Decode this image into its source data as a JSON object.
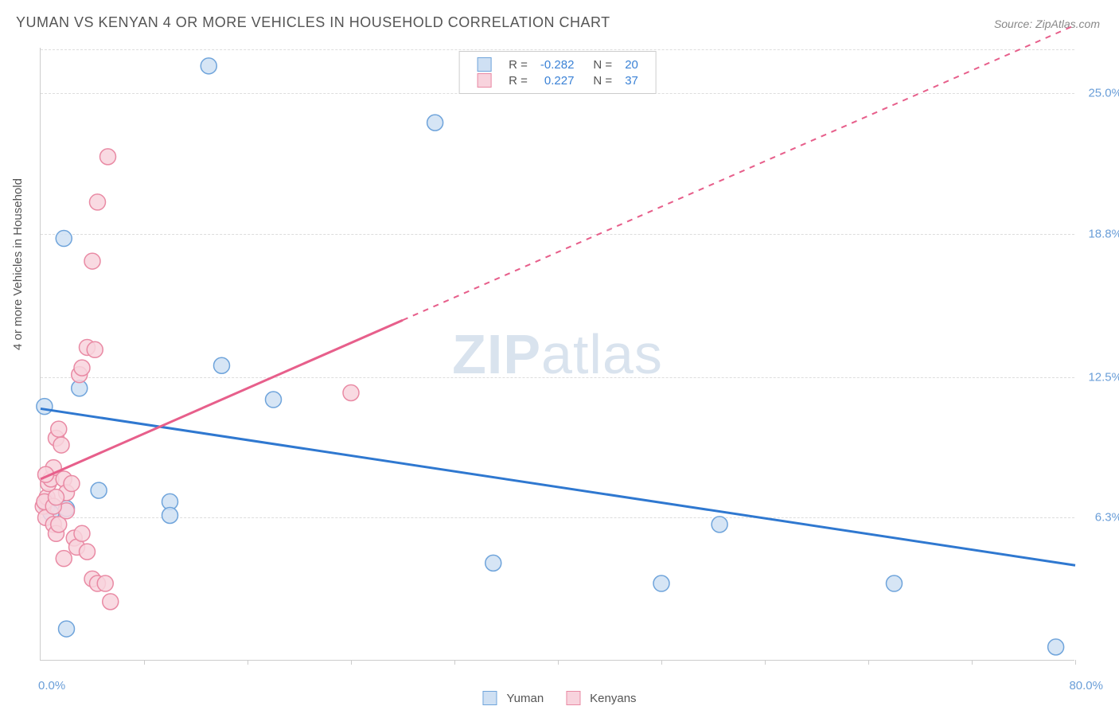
{
  "title": "YUMAN VS KENYAN 4 OR MORE VEHICLES IN HOUSEHOLD CORRELATION CHART",
  "source": "Source: ZipAtlas.com",
  "y_axis_label": "4 or more Vehicles in Household",
  "watermark_bold": "ZIP",
  "watermark_rest": "atlas",
  "chart": {
    "type": "scatter",
    "background_color": "#ffffff",
    "grid_color": "#dddddd",
    "axis_color": "#cccccc",
    "xlim": [
      0.0,
      80.0
    ],
    "ylim": [
      0.0,
      27.0
    ],
    "x_tick_positions": [
      8.0,
      16.0,
      24.0,
      32.0,
      40.0,
      48.0,
      56.0,
      64.0,
      72.0,
      80.0
    ],
    "x_min_label": "0.0%",
    "x_max_label": "80.0%",
    "y_grid": [
      {
        "v": 6.3,
        "label": "6.3%"
      },
      {
        "v": 12.5,
        "label": "12.5%"
      },
      {
        "v": 18.8,
        "label": "18.8%"
      },
      {
        "v": 25.0,
        "label": "25.0%"
      }
    ],
    "series": [
      {
        "name": "Yuman",
        "label": "Yuman",
        "fill_color": "#cfe0f3",
        "stroke_color": "#6fa4db",
        "line_color": "#2f78d0",
        "marker_radius": 10,
        "marker_opacity": 0.85,
        "R": "-0.282",
        "N": "20",
        "trend": {
          "x1": 0.0,
          "y1": 11.1,
          "x2": 80.0,
          "y2": 4.2,
          "dash_from_x": null
        },
        "points": [
          {
            "x": 0.5,
            "y": 7.0
          },
          {
            "x": 0.5,
            "y": 6.8
          },
          {
            "x": 2.0,
            "y": 6.7
          },
          {
            "x": 0.3,
            "y": 11.2
          },
          {
            "x": 1.8,
            "y": 18.6
          },
          {
            "x": 3.0,
            "y": 12.0
          },
          {
            "x": 4.5,
            "y": 7.5
          },
          {
            "x": 2.0,
            "y": 1.4
          },
          {
            "x": 10.0,
            "y": 7.0
          },
          {
            "x": 10.0,
            "y": 6.4
          },
          {
            "x": 13.0,
            "y": 26.2
          },
          {
            "x": 14.0,
            "y": 13.0
          },
          {
            "x": 18.0,
            "y": 11.5
          },
          {
            "x": 30.5,
            "y": 23.7
          },
          {
            "x": 35.0,
            "y": 4.3
          },
          {
            "x": 48.0,
            "y": 3.4
          },
          {
            "x": 52.5,
            "y": 6.0
          },
          {
            "x": 66.0,
            "y": 3.4
          },
          {
            "x": 78.5,
            "y": 0.6
          },
          {
            "x": 0.8,
            "y": 6.5
          }
        ]
      },
      {
        "name": "Kenyans",
        "label": "Kenyans",
        "fill_color": "#f8d3dd",
        "stroke_color": "#e98aa4",
        "line_color": "#e75f8b",
        "marker_radius": 10,
        "marker_opacity": 0.85,
        "R": "0.227",
        "N": "37",
        "trend": {
          "x1": 0.0,
          "y1": 8.0,
          "x2": 80.0,
          "y2": 28.0,
          "dash_from_x": 28.0
        },
        "points": [
          {
            "x": 0.2,
            "y": 6.8
          },
          {
            "x": 0.4,
            "y": 6.3
          },
          {
            "x": 0.5,
            "y": 7.2
          },
          {
            "x": 0.6,
            "y": 7.8
          },
          {
            "x": 0.8,
            "y": 8.0
          },
          {
            "x": 0.3,
            "y": 7.0
          },
          {
            "x": 1.0,
            "y": 6.0
          },
          {
            "x": 1.2,
            "y": 5.6
          },
          {
            "x": 1.4,
            "y": 6.0
          },
          {
            "x": 1.0,
            "y": 8.5
          },
          {
            "x": 1.2,
            "y": 9.8
          },
          {
            "x": 1.4,
            "y": 10.2
          },
          {
            "x": 1.6,
            "y": 9.5
          },
          {
            "x": 1.8,
            "y": 8.0
          },
          {
            "x": 2.0,
            "y": 7.4
          },
          {
            "x": 2.0,
            "y": 6.6
          },
          {
            "x": 2.4,
            "y": 7.8
          },
          {
            "x": 2.6,
            "y": 5.4
          },
          {
            "x": 2.8,
            "y": 5.0
          },
          {
            "x": 1.8,
            "y": 4.5
          },
          {
            "x": 3.2,
            "y": 5.6
          },
          {
            "x": 3.6,
            "y": 4.8
          },
          {
            "x": 4.0,
            "y": 3.6
          },
          {
            "x": 4.4,
            "y": 3.4
          },
          {
            "x": 5.0,
            "y": 3.4
          },
          {
            "x": 5.4,
            "y": 2.6
          },
          {
            "x": 3.0,
            "y": 12.6
          },
          {
            "x": 3.2,
            "y": 12.9
          },
          {
            "x": 3.6,
            "y": 13.8
          },
          {
            "x": 4.2,
            "y": 13.7
          },
          {
            "x": 4.0,
            "y": 17.6
          },
          {
            "x": 4.4,
            "y": 20.2
          },
          {
            "x": 5.2,
            "y": 22.2
          },
          {
            "x": 1.0,
            "y": 6.8
          },
          {
            "x": 1.2,
            "y": 7.2
          },
          {
            "x": 0.4,
            "y": 8.2
          },
          {
            "x": 24.0,
            "y": 11.8
          }
        ]
      }
    ]
  },
  "legend_top": {
    "R_label": "R =",
    "N_label": "N ="
  },
  "stat_value_color": "#3b82d6",
  "label_fontsize": 15,
  "title_fontsize": 18
}
